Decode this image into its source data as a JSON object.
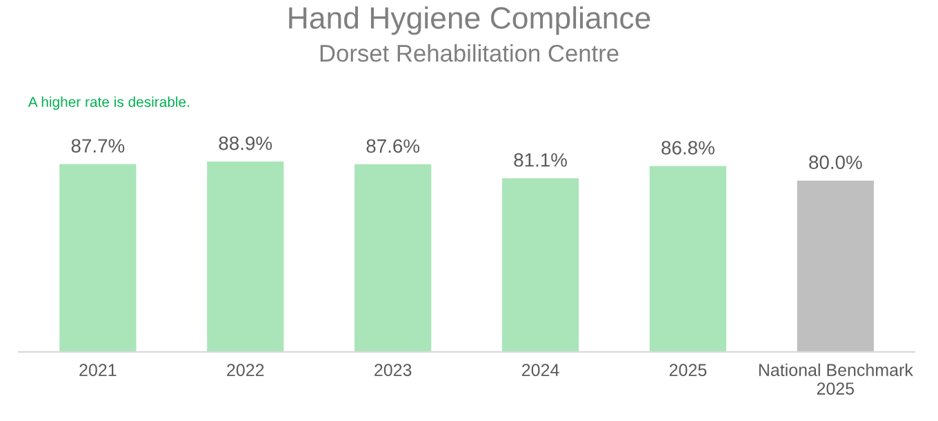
{
  "chart_data": {
    "type": "bar",
    "title": "Hand Hygiene Compliance",
    "subtitle": "Dorset Rehabilitation Centre",
    "annotations": [
      "A higher rate is desirable."
    ],
    "categories": [
      "2021",
      "2022",
      "2023",
      "2024",
      "2025",
      "National Benchmark\n2025"
    ],
    "values": [
      87.7,
      88.9,
      87.6,
      81.1,
      86.8,
      80.0
    ],
    "colors": [
      "#a9e5b9",
      "#a9e5b9",
      "#a9e5b9",
      "#a9e5b9",
      "#a9e5b9",
      "#bfbfbf"
    ],
    "value_labels": [
      "87.7%",
      "88.9%",
      "87.6%",
      "81.1%",
      "86.8%",
      "80.0%"
    ],
    "grid": false,
    "legend": false
  }
}
